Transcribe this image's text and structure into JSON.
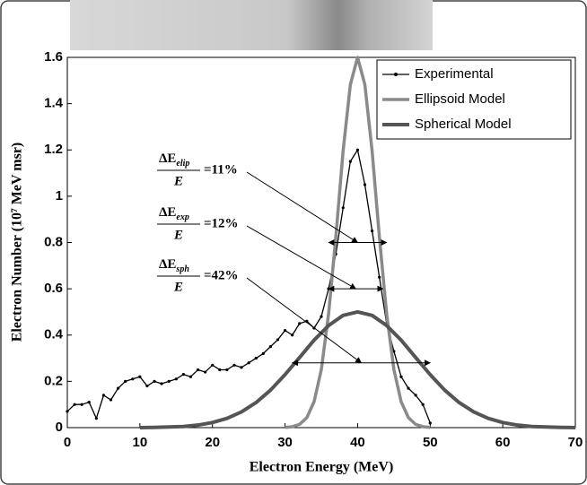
{
  "chart_data": {
    "type": "line",
    "xlabel": "Electron Energy (MeV)",
    "ylabel": "Electron Number (10⁷ MeV msr)",
    "xlim": [
      0,
      70
    ],
    "xticks": [
      0,
      10,
      20,
      30,
      40,
      50,
      60,
      70
    ],
    "ylim": [
      0,
      1.6
    ],
    "yticks": [
      0,
      0.2,
      0.4,
      0.6,
      0.8,
      1,
      1.2,
      1.4,
      1.6
    ],
    "legend": "upper right",
    "series": [
      {
        "name": "Experimental",
        "color": "#000000",
        "markers": true,
        "x": [
          0,
          1,
          2,
          3,
          4,
          5,
          6,
          7,
          8,
          9,
          10,
          11,
          12,
          13,
          14,
          15,
          16,
          17,
          18,
          19,
          20,
          21,
          22,
          23,
          24,
          25,
          26,
          27,
          28,
          29,
          30,
          31,
          32,
          33,
          34,
          35,
          36,
          37,
          38,
          39,
          40,
          41,
          42,
          43,
          44,
          45,
          46,
          47,
          48,
          49,
          50
        ],
        "values": [
          0.07,
          0.1,
          0.1,
          0.11,
          0.04,
          0.14,
          0.12,
          0.17,
          0.2,
          0.21,
          0.22,
          0.18,
          0.2,
          0.19,
          0.2,
          0.21,
          0.23,
          0.22,
          0.25,
          0.24,
          0.27,
          0.25,
          0.25,
          0.27,
          0.26,
          0.28,
          0.3,
          0.32,
          0.35,
          0.38,
          0.42,
          0.4,
          0.45,
          0.46,
          0.43,
          0.48,
          0.6,
          0.75,
          0.95,
          1.15,
          1.2,
          1.05,
          0.85,
          0.65,
          0.45,
          0.33,
          0.22,
          0.17,
          0.14,
          0.1,
          0.02
        ]
      },
      {
        "name": "Ellipsoid Model",
        "color": "#8a8a8a",
        "markers": false,
        "x": [
          30,
          31,
          32,
          33,
          34,
          35,
          36,
          37,
          38,
          39,
          40,
          41,
          42,
          43,
          44,
          45,
          46,
          47,
          48,
          49,
          50
        ],
        "values": [
          0.001,
          0.004,
          0.014,
          0.043,
          0.112,
          0.251,
          0.491,
          0.824,
          1.195,
          1.482,
          1.6,
          1.482,
          1.195,
          0.824,
          0.491,
          0.251,
          0.112,
          0.043,
          0.014,
          0.004,
          0.001
        ]
      },
      {
        "name": "Spherical Model",
        "color": "#555555",
        "markers": false,
        "x": [
          10,
          12,
          14,
          16,
          18,
          20,
          22,
          24,
          26,
          28,
          30,
          32,
          34,
          36,
          38,
          40,
          42,
          44,
          46,
          48,
          50,
          52,
          54,
          56,
          58,
          60,
          62,
          64,
          66,
          68,
          70
        ],
        "values": [
          0,
          0.001,
          0.003,
          0.005,
          0.011,
          0.022,
          0.04,
          0.068,
          0.108,
          0.162,
          0.229,
          0.303,
          0.378,
          0.441,
          0.485,
          0.5,
          0.485,
          0.441,
          0.378,
          0.303,
          0.229,
          0.162,
          0.108,
          0.068,
          0.04,
          0.022,
          0.011,
          0.005,
          0.003,
          0.001,
          0
        ]
      }
    ],
    "annotations": [
      {
        "numerator": "ΔE",
        "subscript": "elip",
        "denominator": "E",
        "text": "=11%",
        "arrow_y": 0.8,
        "arrow_x": [
          36,
          44
        ]
      },
      {
        "numerator": "ΔE",
        "subscript": "exp",
        "denominator": "E",
        "text": "=12%",
        "arrow_y": 0.6,
        "arrow_x": [
          36,
          43.5
        ]
      },
      {
        "numerator": "ΔE",
        "subscript": "sph",
        "denominator": "E",
        "text": "=42%",
        "arrow_y": 0.28,
        "arrow_x": [
          31,
          50
        ]
      }
    ]
  }
}
